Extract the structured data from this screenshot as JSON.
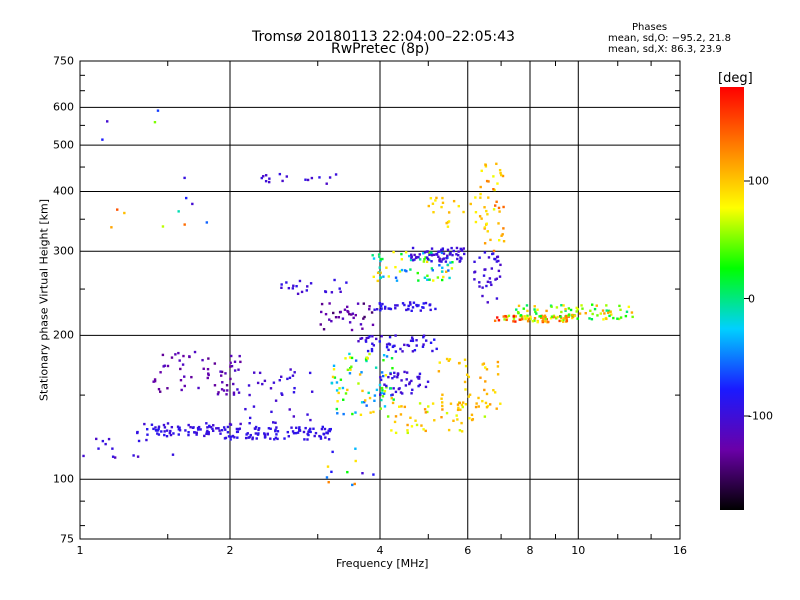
{
  "header": {
    "title_line1": "Tromsø 20180113 22:04:00–22:05:43",
    "title_line2": "RwPretec (8p)"
  },
  "stats": {
    "heading": "Phases",
    "line_o": "mean, sd,O: −95.2, 21.8",
    "line_x": "mean, sd,X:  86.3, 23.9"
  },
  "chart_data": {
    "type": "scatter",
    "xlabel": "Frequency [MHz]",
    "ylabel": "Stationary phase Virtual Height [km]",
    "xscale": "log",
    "yscale": "log",
    "xlim": [
      1,
      16
    ],
    "ylim": [
      75,
      750
    ],
    "xticks": [
      {
        "value": 1,
        "label": "1"
      },
      {
        "value": 2,
        "label": "2"
      },
      {
        "value": 4,
        "label": "4"
      },
      {
        "value": 6,
        "label": "6"
      },
      {
        "value": 8,
        "label": "8"
      },
      {
        "value": 10,
        "label": "10"
      },
      {
        "value": 16,
        "label": "16"
      }
    ],
    "yticks": [
      {
        "value": 75,
        "label": "75"
      },
      {
        "value": 100,
        "label": "100"
      },
      {
        "value": 200,
        "label": "200"
      },
      {
        "value": 300,
        "label": "300"
      },
      {
        "value": 400,
        "label": "400"
      },
      {
        "value": 500,
        "label": "500"
      },
      {
        "value": 600,
        "label": "600"
      },
      {
        "value": 750,
        "label": "750"
      }
    ],
    "grid": true,
    "colorbar": {
      "label": "[deg]",
      "min": -180,
      "max": 180,
      "ticks": [
        {
          "value": 100,
          "label": "100"
        },
        {
          "value": 0,
          "label": "0"
        },
        {
          "value": -100,
          "label": "-100"
        }
      ],
      "colors": [
        "#000000",
        "#6a00a8",
        "#1a1aff",
        "#00d0ff",
        "#00ff00",
        "#ffff00",
        "#ff8000",
        "#ff0000"
      ]
    },
    "clusters": [
      {
        "f": [
          1.3,
          1.95
        ],
        "h": [
          123,
          131
        ],
        "p": [
          -105,
          -85
        ],
        "n": 70
      },
      {
        "f": [
          1.95,
          3.2
        ],
        "h": [
          121,
          129
        ],
        "p": [
          -100,
          -85
        ],
        "n": 95
      },
      {
        "f": [
          1.4,
          2.1
        ],
        "h": [
          150,
          185
        ],
        "p": [
          -140,
          -110
        ],
        "n": 60
      },
      {
        "f": [
          2.0,
          3.0
        ],
        "h": [
          130,
          175
        ],
        "p": [
          -110,
          -90
        ],
        "n": 40
      },
      {
        "f": [
          2.5,
          3.5
        ],
        "h": [
          243,
          262
        ],
        "p": [
          -110,
          -90
        ],
        "n": 20
      },
      {
        "f": [
          2.3,
          3.3
        ],
        "h": [
          415,
          435
        ],
        "p": [
          -110,
          -90
        ],
        "n": 16
      },
      {
        "f": [
          3.0,
          3.9
        ],
        "h": [
          205,
          235
        ],
        "p": [
          -150,
          -110
        ],
        "n": 35
      },
      {
        "f": [
          3.2,
          4.3
        ],
        "h": [
          135,
          185
        ],
        "p": [
          -60,
          110
        ],
        "n": 80
      },
      {
        "f": [
          3.6,
          5.2
        ],
        "h": [
          185,
          200
        ],
        "p": [
          -110,
          -80
        ],
        "n": 50
      },
      {
        "f": [
          4.0,
          5.0
        ],
        "h": [
          150,
          168
        ],
        "p": [
          -110,
          -90
        ],
        "n": 40
      },
      {
        "f": [
          3.8,
          5.6
        ],
        "h": [
          260,
          300
        ],
        "p": [
          -60,
          110
        ],
        "n": 70
      },
      {
        "f": [
          4.6,
          6.0
        ],
        "h": [
          285,
          305
        ],
        "p": [
          -110,
          -90
        ],
        "n": 60
      },
      {
        "f": [
          3.9,
          5.2
        ],
        "h": [
          225,
          235
        ],
        "p": [
          -100,
          -80
        ],
        "n": 40
      },
      {
        "f": [
          4.2,
          6.5
        ],
        "h": [
          125,
          145
        ],
        "p": [
          60,
          120
        ],
        "n": 50
      },
      {
        "f": [
          5.2,
          7.0
        ],
        "h": [
          140,
          180
        ],
        "p": [
          80,
          120
        ],
        "n": 45
      },
      {
        "f": [
          5.0,
          6.6
        ],
        "h": [
          330,
          390
        ],
        "p": [
          80,
          110
        ],
        "n": 25
      },
      {
        "f": [
          6.3,
          7.1
        ],
        "h": [
          300,
          460
        ],
        "p": [
          70,
          140
        ],
        "n": 40
      },
      {
        "f": [
          6.1,
          7.0
        ],
        "h": [
          230,
          300
        ],
        "p": [
          -110,
          -90
        ],
        "n": 35
      },
      {
        "f": [
          6.8,
          9.6
        ],
        "h": [
          213,
          220
        ],
        "p": [
          40,
          180
        ],
        "n": 70
      },
      {
        "f": [
          7.5,
          13.0
        ],
        "h": [
          216,
          232
        ],
        "p": [
          0,
          120
        ],
        "n": 80
      },
      {
        "f": [
          1.1,
          1.8
        ],
        "h": [
          300,
          600
        ],
        "p": [
          -120,
          150
        ],
        "n": 14
      },
      {
        "f": [
          1.0,
          1.6
        ],
        "h": [
          110,
          122
        ],
        "p": [
          -120,
          -90
        ],
        "n": 14
      },
      {
        "f": [
          3.0,
          4.0
        ],
        "h": [
          95,
          120
        ],
        "p": [
          -120,
          140
        ],
        "n": 12
      }
    ]
  }
}
